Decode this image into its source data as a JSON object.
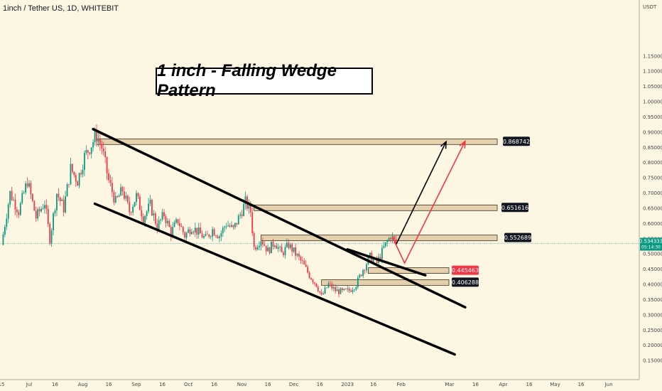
{
  "header": {
    "symbol": "1inch / Tether US, 1D, WHITEBIT"
  },
  "chart_data": {
    "type": "candlestick",
    "title": "1 inch - Falling Wedge Pattern",
    "y_unit": "USDT",
    "ylim": [
      0.12,
      1.32
    ],
    "y_ticks": [
      "0.150000",
      "0.200000",
      "0.250000",
      "0.300000",
      "0.350000",
      "0.400000",
      "0.450000",
      "0.500000",
      "0.550000",
      "0.600000",
      "0.650000",
      "0.700000",
      "0.750000",
      "0.800000",
      "0.850000",
      "0.900000",
      "0.950000",
      "1.000000",
      "1.050000",
      "1.100000",
      "1.150000"
    ],
    "x_ticks": [
      {
        "label": "15",
        "t": 0
      },
      {
        "label": "Jul",
        "t": 16
      },
      {
        "label": "16",
        "t": 31
      },
      {
        "label": "Aug",
        "t": 47
      },
      {
        "label": "16",
        "t": 62
      },
      {
        "label": "Sep",
        "t": 78
      },
      {
        "label": "16",
        "t": 93
      },
      {
        "label": "Oct",
        "t": 108
      },
      {
        "label": "16",
        "t": 123
      },
      {
        "label": "Nov",
        "t": 139
      },
      {
        "label": "16",
        "t": 154
      },
      {
        "label": "Dec",
        "t": 169
      },
      {
        "label": "16",
        "t": 184
      },
      {
        "label": "2023",
        "t": 200
      },
      {
        "label": "16",
        "t": 215
      },
      {
        "label": "Feb",
        "t": 231
      },
      {
        "label": "Mar",
        "t": 259
      },
      {
        "label": "16",
        "t": 274
      },
      {
        "label": "Apr",
        "t": 290
      },
      {
        "label": "16",
        "t": 305
      },
      {
        "label": "May",
        "t": 320
      },
      {
        "label": "16",
        "t": 335
      },
      {
        "label": "Jun",
        "t": 351
      }
    ],
    "price_path": [
      [
        0,
        0.53
      ],
      [
        5,
        0.7
      ],
      [
        10,
        0.64
      ],
      [
        15,
        0.74
      ],
      [
        20,
        0.62
      ],
      [
        25,
        0.67
      ],
      [
        28,
        0.55
      ],
      [
        32,
        0.7
      ],
      [
        36,
        0.65
      ],
      [
        40,
        0.78
      ],
      [
        44,
        0.74
      ],
      [
        48,
        0.82
      ],
      [
        52,
        0.86
      ],
      [
        55,
        0.89
      ],
      [
        58,
        0.85
      ],
      [
        62,
        0.74
      ],
      [
        66,
        0.67
      ],
      [
        70,
        0.71
      ],
      [
        74,
        0.64
      ],
      [
        78,
        0.69
      ],
      [
        82,
        0.62
      ],
      [
        86,
        0.66
      ],
      [
        90,
        0.59
      ],
      [
        94,
        0.63
      ],
      [
        98,
        0.57
      ],
      [
        102,
        0.61
      ],
      [
        106,
        0.56
      ],
      [
        110,
        0.59
      ],
      [
        114,
        0.57
      ],
      [
        118,
        0.55
      ],
      [
        122,
        0.58
      ],
      [
        126,
        0.56
      ],
      [
        130,
        0.6
      ],
      [
        134,
        0.58
      ],
      [
        138,
        0.63
      ],
      [
        141,
        0.67
      ],
      [
        144,
        0.64
      ],
      [
        146,
        0.52
      ],
      [
        150,
        0.55
      ],
      [
        154,
        0.51
      ],
      [
        158,
        0.54
      ],
      [
        162,
        0.5
      ],
      [
        166,
        0.53
      ],
      [
        170,
        0.5
      ],
      [
        174,
        0.47
      ],
      [
        178,
        0.43
      ],
      [
        182,
        0.4
      ],
      [
        185,
        0.36
      ],
      [
        189,
        0.4
      ],
      [
        193,
        0.38
      ],
      [
        197,
        0.375
      ],
      [
        201,
        0.38
      ],
      [
        205,
        0.4
      ],
      [
        209,
        0.45
      ],
      [
        213,
        0.49
      ],
      [
        217,
        0.47
      ],
      [
        221,
        0.52
      ],
      [
        225,
        0.56
      ],
      [
        228,
        0.534
      ]
    ],
    "levels": [
      {
        "label": "0.868742",
        "value": 0.868742,
        "style": "dark"
      },
      {
        "label": "0.651616",
        "value": 0.651616,
        "style": "dark"
      },
      {
        "label": "0.552689",
        "value": 0.552689,
        "style": "dark"
      },
      {
        "label": "0.445463",
        "value": 0.445463,
        "style": "red"
      },
      {
        "label": "0.406288",
        "value": 0.406288,
        "style": "dark"
      }
    ],
    "current_price": {
      "value": 0.534333,
      "label": "0.534333",
      "countdown": "05:14:30"
    },
    "wedge_lines": [
      {
        "from": [
          53,
          0.91
        ],
        "to": [
          268,
          0.325
        ]
      },
      {
        "from": [
          54,
          0.665
        ],
        "to": [
          262,
          0.17
        ]
      },
      {
        "from": [
          200,
          0.515
        ],
        "to": [
          245,
          0.43
        ]
      }
    ],
    "projection_arrows": [
      {
        "color": "#000000",
        "points": [
          [
            228,
            0.53
          ],
          [
            257,
            0.868742
          ]
        ]
      },
      {
        "color": "#f23645",
        "points": [
          [
            226,
            0.555
          ],
          [
            233,
            0.47
          ],
          [
            268,
            0.87
          ]
        ]
      }
    ]
  },
  "colors": {
    "up": "#089981",
    "down": "#f23645",
    "background": "#fdf6e3",
    "zone": "#c8a46a"
  }
}
